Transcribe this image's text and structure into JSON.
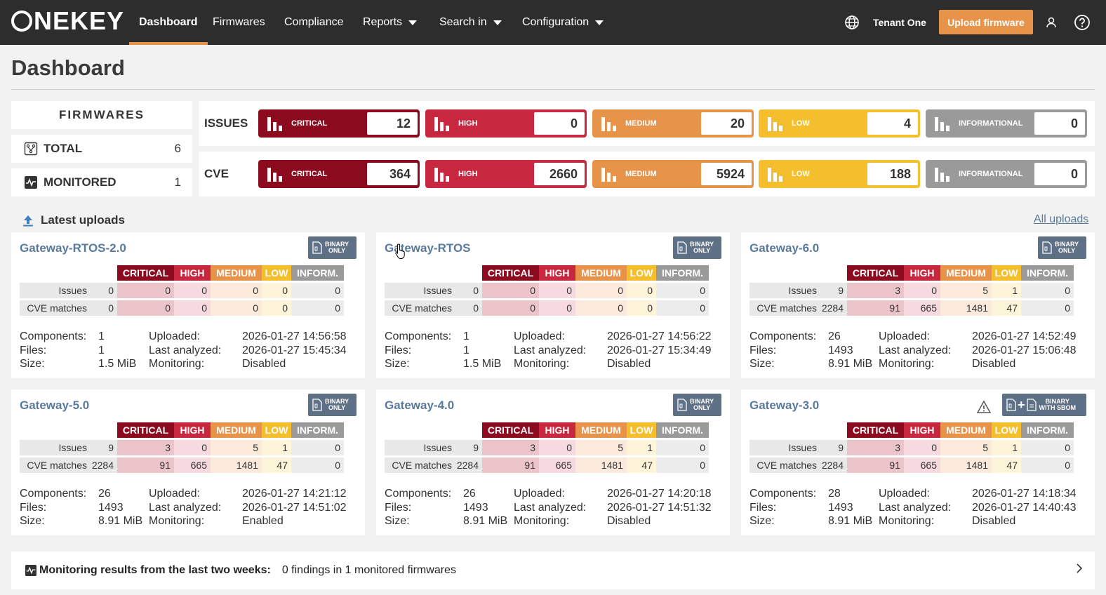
{
  "nav": {
    "logo": "NEKEY",
    "items": [
      {
        "label": "Dashboard",
        "active": true
      },
      {
        "label": "Firmwares"
      },
      {
        "label": "Compliance"
      },
      {
        "label": "Reports"
      },
      {
        "label": "Search in"
      },
      {
        "label": "Configuration"
      }
    ],
    "tenant": "Tenant One",
    "upload_button": "Upload firmware"
  },
  "page": {
    "title": "Dashboard"
  },
  "firmwares": {
    "header": "FIRMWARES",
    "total_label": "TOTAL",
    "total_value": "6",
    "monitored_label": "MONITORED",
    "monitored_value": "1"
  },
  "severity_panels": {
    "issues": {
      "label": "ISSUES",
      "critical": "12",
      "high": "0",
      "medium": "20",
      "low": "4",
      "informational": "0"
    },
    "cve": {
      "label": "CVE",
      "critical": "364",
      "high": "2660",
      "medium": "5924",
      "low": "188",
      "informational": "0"
    }
  },
  "severity_names": {
    "critical": "CRITICAL",
    "high": "HIGH",
    "medium": "MEDIUM",
    "low": "LOW",
    "informational": "INFORMATIONAL"
  },
  "table_headers": {
    "critical": "CRITICAL",
    "high": "HIGH",
    "medium": "MEDIUM",
    "low": "LOW",
    "inform": "INFORM."
  },
  "row_labels": {
    "issues": "Issues",
    "cve": "CVE matches"
  },
  "info_labels": {
    "components": "Components:",
    "files": "Files:",
    "size": "Size:",
    "uploaded": "Uploaded:",
    "last_analyzed": "Last analyzed:",
    "monitoring": "Monitoring:"
  },
  "latest": {
    "title": "Latest uploads",
    "all_link": "All uploads"
  },
  "colors": {
    "critical": "#8b0a1e",
    "high": "#c8283f",
    "medium": "#e8934a",
    "low": "#f5be2c",
    "informational": "#9a9a9a"
  },
  "cards": [
    {
      "name": "Gateway-RTOS-2.0",
      "badge": [
        "BINARY",
        "ONLY"
      ],
      "issues": {
        "total": "0",
        "critical": "0",
        "high": "0",
        "medium": "0",
        "low": "0",
        "inform": "0"
      },
      "cve": {
        "total": "0",
        "critical": "0",
        "high": "0",
        "medium": "0",
        "low": "0",
        "inform": "0"
      },
      "components": "1",
      "files": "1",
      "size": "1.5 MiB",
      "uploaded": "2026-01-27 14:56:58",
      "last_analyzed": "2026-01-27 15:45:34",
      "monitoring": "Disabled"
    },
    {
      "name": "Gateway-RTOS",
      "badge": [
        "BINARY",
        "ONLY"
      ],
      "issues": {
        "total": "0",
        "critical": "0",
        "high": "0",
        "medium": "0",
        "low": "0",
        "inform": "0"
      },
      "cve": {
        "total": "0",
        "critical": "0",
        "high": "0",
        "medium": "0",
        "low": "0",
        "inform": "0"
      },
      "components": "1",
      "files": "1",
      "size": "1.5 MiB",
      "uploaded": "2026-01-27 14:56:22",
      "last_analyzed": "2026-01-27 15:34:49",
      "monitoring": "Disabled"
    },
    {
      "name": "Gateway-6.0",
      "badge": [
        "BINARY",
        "ONLY"
      ],
      "issues": {
        "total": "9",
        "critical": "3",
        "high": "0",
        "medium": "5",
        "low": "1",
        "inform": "0"
      },
      "cve": {
        "total": "2284",
        "critical": "91",
        "high": "665",
        "medium": "1481",
        "low": "47",
        "inform": "0"
      },
      "components": "26",
      "files": "1493",
      "size": "8.91 MiB",
      "uploaded": "2026-01-27 14:52:49",
      "last_analyzed": "2026-01-27 15:06:48",
      "monitoring": "Disabled"
    },
    {
      "name": "Gateway-5.0",
      "badge": [
        "BINARY",
        "ONLY"
      ],
      "issues": {
        "total": "9",
        "critical": "3",
        "high": "0",
        "medium": "5",
        "low": "1",
        "inform": "0"
      },
      "cve": {
        "total": "2284",
        "critical": "91",
        "high": "665",
        "medium": "1481",
        "low": "47",
        "inform": "0"
      },
      "components": "26",
      "files": "1493",
      "size": "8.91 MiB",
      "uploaded": "2026-01-27 14:21:12",
      "last_analyzed": "2026-01-27 14:51:02",
      "monitoring": "Enabled"
    },
    {
      "name": "Gateway-4.0",
      "badge": [
        "BINARY",
        "ONLY"
      ],
      "issues": {
        "total": "9",
        "critical": "3",
        "high": "0",
        "medium": "5",
        "low": "1",
        "inform": "0"
      },
      "cve": {
        "total": "2284",
        "critical": "91",
        "high": "665",
        "medium": "1481",
        "low": "47",
        "inform": "0"
      },
      "components": "26",
      "files": "1493",
      "size": "8.91 MiB",
      "uploaded": "2026-01-27 14:20:18",
      "last_analyzed": "2026-01-27 14:51:32",
      "monitoring": "Disabled"
    },
    {
      "name": "Gateway-3.0",
      "badge": [
        "BINARY",
        "WITH SBOM"
      ],
      "issues": {
        "total": "9",
        "critical": "3",
        "high": "0",
        "medium": "5",
        "low": "1",
        "inform": "0"
      },
      "cve": {
        "total": "2284",
        "critical": "91",
        "high": "665",
        "medium": "1481",
        "low": "47",
        "inform": "0"
      },
      "components": "28",
      "files": "1493",
      "size": "8.91 MiB",
      "uploaded": "2026-01-27 14:18:34",
      "last_analyzed": "2026-01-27 14:40:43",
      "monitoring": "Disabled"
    }
  ],
  "monitoring_summary": {
    "label": "Monitoring results from the last two weeks:",
    "value": "0 findings in 1 monitored firmwares"
  }
}
